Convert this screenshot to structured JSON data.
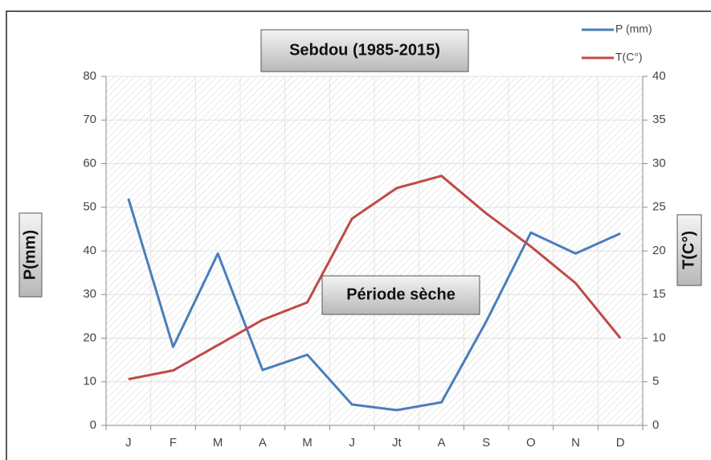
{
  "chart_data": {
    "type": "line",
    "title": "Sebdou (1985-2015)",
    "annotation": "Période sèche",
    "ylabel": "P(mm)",
    "y2label": "T(C°)",
    "categories": [
      "J",
      "F",
      "M",
      "A",
      "M",
      "J",
      "Jt",
      "A",
      "S",
      "O",
      "N",
      "D"
    ],
    "series": [
      {
        "name": "P (mm)",
        "color": "#4a7ebb",
        "values": [
          52,
          18,
          39.4,
          12.7,
          16.2,
          4.8,
          3.5,
          5.3,
          23.8,
          44.2,
          39.4,
          44
        ]
      },
      {
        "name": "T(C°)",
        "color": "#be4b48",
        "axis": "y2",
        "values": [
          5.3,
          6.3,
          9.2,
          12.1,
          14.1,
          23.7,
          27.2,
          28.6,
          24.3,
          20.5,
          16.3,
          10
        ]
      }
    ],
    "ylim": [
      0,
      80
    ],
    "yticks": [
      0,
      10,
      20,
      30,
      40,
      50,
      60,
      70,
      80
    ],
    "y2lim": [
      0,
      40
    ],
    "y2ticks": [
      0,
      5,
      10,
      15,
      20,
      25,
      30,
      35,
      40
    ],
    "grid": true,
    "legend": "top-right"
  }
}
